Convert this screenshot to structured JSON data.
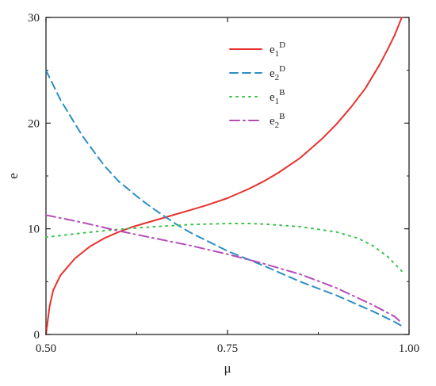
{
  "chart_data": {
    "type": "line",
    "title": "",
    "xlabel": "μ",
    "ylabel": "e",
    "xlim": [
      0.5,
      1.0
    ],
    "ylim": [
      0,
      30
    ],
    "x_ticks": [
      {
        "value": 0.5,
        "label": "0.50"
      },
      {
        "value": 0.75,
        "label": "0.75"
      },
      {
        "value": 1.0,
        "label": "1.00"
      }
    ],
    "y_ticks": [
      {
        "value": 0,
        "label": "0"
      },
      {
        "value": 10,
        "label": "10"
      },
      {
        "value": 20,
        "label": "20"
      },
      {
        "value": 30,
        "label": "30"
      }
    ],
    "legend_position": "top-right",
    "grid": false,
    "series": [
      {
        "name": "e1^D",
        "base": "e",
        "sub": "1",
        "sup": "D",
        "color": "#e8322e",
        "dash": "solid",
        "x": [
          0.5,
          0.505,
          0.51,
          0.52,
          0.54,
          0.56,
          0.58,
          0.6,
          0.62,
          0.65,
          0.68,
          0.7,
          0.72,
          0.75,
          0.78,
          0.8,
          0.82,
          0.85,
          0.88,
          0.9,
          0.92,
          0.94,
          0.96,
          0.97,
          0.98,
          0.99
        ],
        "y": [
          0.0,
          2.7,
          4.2,
          5.6,
          7.2,
          8.3,
          9.1,
          9.7,
          10.2,
          10.8,
          11.4,
          11.8,
          12.2,
          12.9,
          13.8,
          14.5,
          15.3,
          16.7,
          18.5,
          19.9,
          21.5,
          23.3,
          25.6,
          26.9,
          28.3,
          30.0
        ]
      },
      {
        "name": "e2^D",
        "base": "e",
        "sub": "2",
        "sup": "D",
        "color": "#2b8fc4",
        "dash": "dashed",
        "x": [
          0.5,
          0.52,
          0.55,
          0.58,
          0.6,
          0.63,
          0.65,
          0.68,
          0.7,
          0.75,
          0.8,
          0.85,
          0.9,
          0.95,
          0.98,
          0.99
        ],
        "y": [
          25.0,
          22.2,
          18.8,
          16.0,
          14.5,
          12.8,
          11.8,
          10.4,
          9.6,
          7.9,
          6.5,
          5.0,
          3.7,
          2.2,
          1.2,
          0.8
        ]
      },
      {
        "name": "e1^B",
        "base": "e",
        "sub": "1",
        "sup": "B",
        "color": "#3cc14a",
        "dash": "dotted",
        "x": [
          0.5,
          0.55,
          0.6,
          0.65,
          0.7,
          0.75,
          0.78,
          0.8,
          0.85,
          0.9,
          0.93,
          0.95,
          0.97,
          0.99
        ],
        "y": [
          9.2,
          9.6,
          9.95,
          10.2,
          10.4,
          10.5,
          10.5,
          10.45,
          10.2,
          9.7,
          9.1,
          8.4,
          7.4,
          6.0
        ]
      },
      {
        "name": "e2^B",
        "base": "e",
        "sub": "2",
        "sup": "B",
        "color": "#b44cb8",
        "dash": "dashdot",
        "x": [
          0.5,
          0.55,
          0.6,
          0.65,
          0.7,
          0.75,
          0.8,
          0.85,
          0.9,
          0.95,
          0.98,
          0.99
        ],
        "y": [
          11.3,
          10.6,
          9.8,
          9.1,
          8.4,
          7.6,
          6.7,
          5.7,
          4.4,
          2.8,
          1.7,
          1.1
        ]
      }
    ]
  }
}
